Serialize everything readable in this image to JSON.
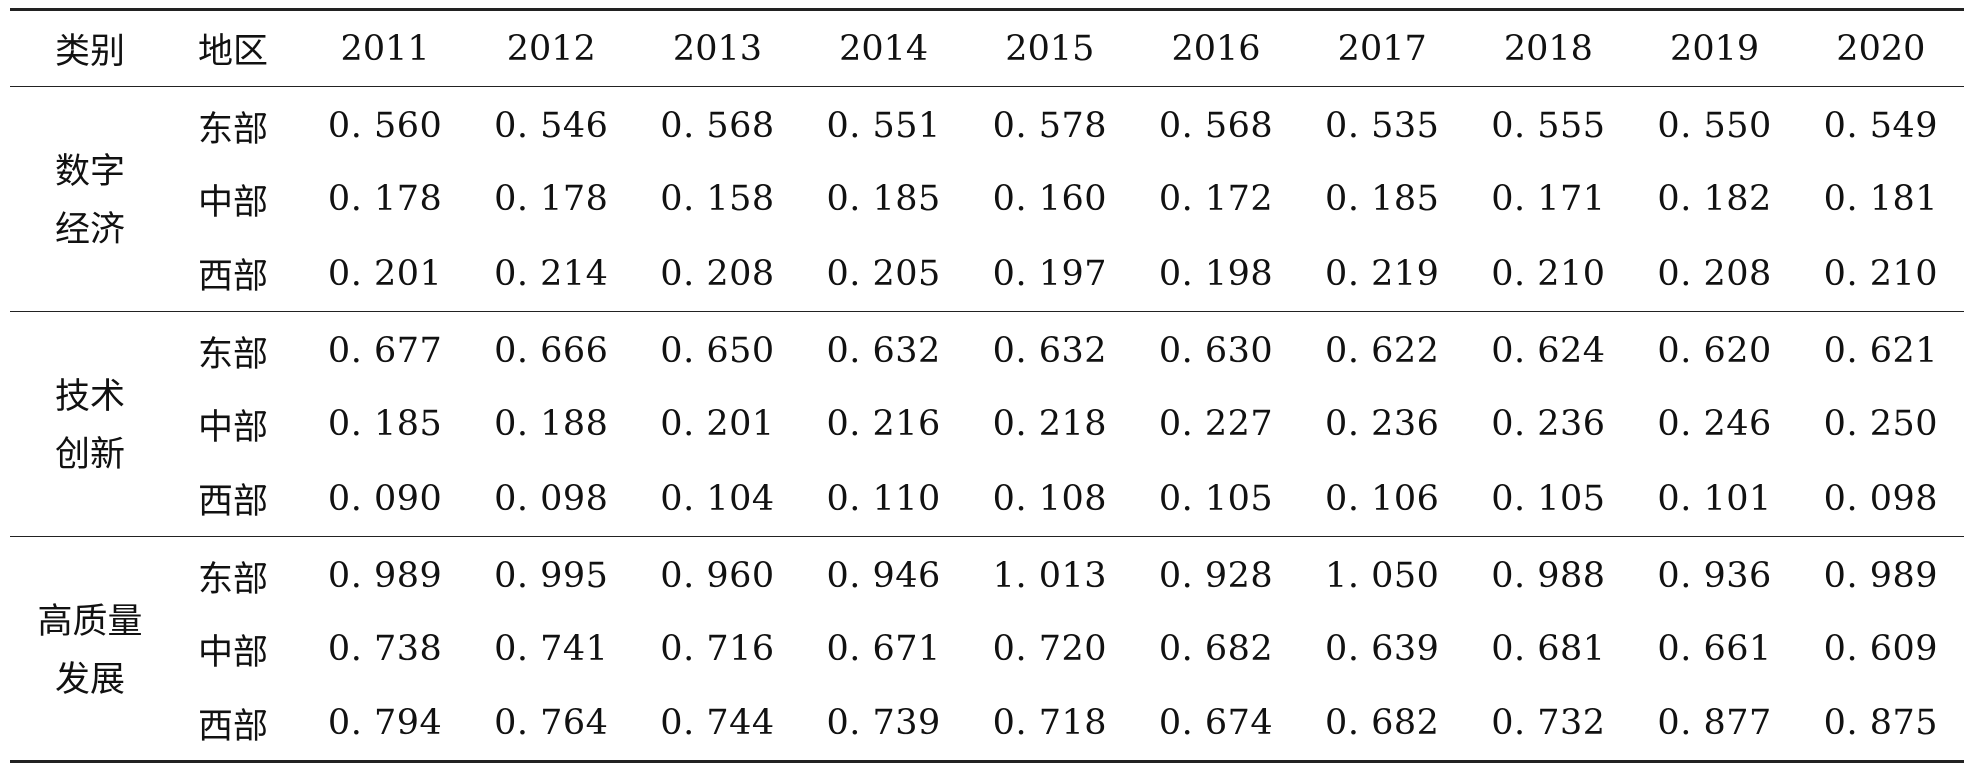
{
  "table": {
    "headers": {
      "category": "类别",
      "region": "地区",
      "years": [
        "2011",
        "2012",
        "2013",
        "2014",
        "2015",
        "2016",
        "2017",
        "2018",
        "2019",
        "2020"
      ]
    },
    "groups": [
      {
        "category_lines": [
          "数字",
          "经济"
        ],
        "rows": [
          {
            "region": "东部",
            "values": [
              "0. 560",
              "0. 546",
              "0. 568",
              "0. 551",
              "0. 578",
              "0. 568",
              "0. 535",
              "0. 555",
              "0. 550",
              "0. 549"
            ]
          },
          {
            "region": "中部",
            "values": [
              "0. 178",
              "0. 178",
              "0. 158",
              "0. 185",
              "0. 160",
              "0. 172",
              "0. 185",
              "0. 171",
              "0. 182",
              "0. 181"
            ]
          },
          {
            "region": "西部",
            "values": [
              "0. 201",
              "0. 214",
              "0. 208",
              "0. 205",
              "0. 197",
              "0. 198",
              "0. 219",
              "0. 210",
              "0. 208",
              "0. 210"
            ]
          }
        ]
      },
      {
        "category_lines": [
          "技术",
          "创新"
        ],
        "rows": [
          {
            "region": "东部",
            "values": [
              "0. 677",
              "0. 666",
              "0. 650",
              "0. 632",
              "0. 632",
              "0. 630",
              "0. 622",
              "0. 624",
              "0. 620",
              "0. 621"
            ]
          },
          {
            "region": "中部",
            "values": [
              "0. 185",
              "0. 188",
              "0. 201",
              "0. 216",
              "0. 218",
              "0. 227",
              "0. 236",
              "0. 236",
              "0. 246",
              "0. 250"
            ]
          },
          {
            "region": "西部",
            "values": [
              "0. 090",
              "0. 098",
              "0. 104",
              "0. 110",
              "0. 108",
              "0. 105",
              "0. 106",
              "0. 105",
              "0. 101",
              "0. 098"
            ]
          }
        ]
      },
      {
        "category_lines": [
          "高质量",
          "发展"
        ],
        "rows": [
          {
            "region": "东部",
            "values": [
              "0. 989",
              "0. 995",
              "0. 960",
              "0. 946",
              "1. 013",
              "0. 928",
              "1. 050",
              "0. 988",
              "0. 936",
              "0. 989"
            ]
          },
          {
            "region": "中部",
            "values": [
              "0. 738",
              "0. 741",
              "0. 716",
              "0. 671",
              "0. 720",
              "0. 682",
              "0. 639",
              "0. 681",
              "0. 661",
              "0. 609"
            ]
          },
          {
            "region": "西部",
            "values": [
              "0. 794",
              "0. 764",
              "0. 744",
              "0. 739",
              "0. 718",
              "0. 674",
              "0. 682",
              "0. 732",
              "0. 877",
              "0. 875"
            ]
          }
        ]
      }
    ]
  }
}
